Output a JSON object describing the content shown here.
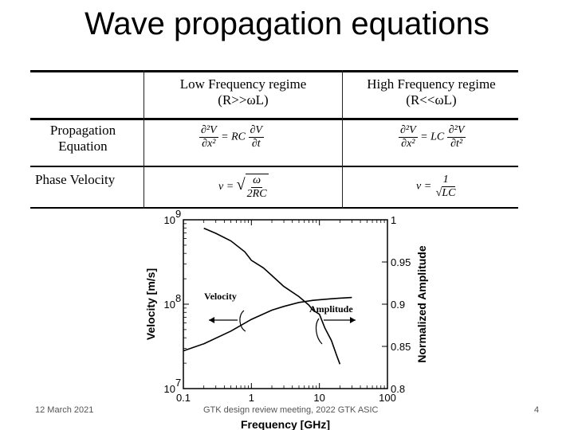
{
  "slide": {
    "title": "Wave propagation equations",
    "footer_date": "12 March 2021",
    "footer_center": "GTK design review meeting, 2022 GTK ASIC",
    "page_number": "4"
  },
  "table": {
    "header_low": [
      "Low Frequency regime",
      "(R>>ωL)"
    ],
    "header_high": [
      "High Frequency regime",
      "(R<<ωL)"
    ],
    "row1_label": [
      "Propagation",
      "Equation"
    ],
    "row2_label": "Phase Velocity",
    "low_eq": {
      "lhs_num": "∂²V",
      "lhs_den": "∂x²",
      "coef": "= RC",
      "rhs_num": "∂V",
      "rhs_den": "∂t"
    },
    "high_eq": {
      "lhs_num": "∂²V",
      "lhs_den": "∂x²",
      "coef": "= LC",
      "rhs_num": "∂²V",
      "rhs_den": "∂t²"
    },
    "low_vel": {
      "lhs": "v =",
      "num": "ω",
      "den": "2RC"
    },
    "high_vel": {
      "lhs": "v =",
      "num": "1",
      "den": "LC"
    }
  },
  "chart_data": {
    "type": "line",
    "x_scale": "log",
    "xlabel": "Frequency [GHz]",
    "ylabel": "Velocity [m/s]",
    "y2label": "Normalized Amplitude",
    "xlim": [
      0.1,
      100
    ],
    "ylim": [
      10000000,
      1000000000
    ],
    "y2lim": [
      0.8,
      1.0
    ],
    "x_ticks": [
      "0.1",
      "1",
      "10",
      "100"
    ],
    "y_ticks": [
      "10",
      "10",
      "10"
    ],
    "y_tick_exponents": [
      "7",
      "8",
      "9"
    ],
    "y2_ticks": [
      "0.8",
      "0.85",
      "0.9",
      "0.95",
      "1"
    ],
    "annotations": [
      "Velocity",
      "Amplitude"
    ],
    "series": [
      {
        "name": "Velocity",
        "x": [
          0.1,
          0.2,
          0.5,
          1,
          2,
          3,
          5,
          8,
          10,
          15,
          20,
          30
        ],
        "y": [
          28000000,
          34000000,
          48000000,
          66000000,
          85000000,
          94000000,
          105000000,
          111000000,
          113000000,
          116000000,
          118000000,
          120000000
        ]
      },
      {
        "name": "Amplitude",
        "x": [
          0.2,
          0.3,
          0.5,
          0.8,
          1,
          1.5,
          2,
          3,
          5,
          7,
          8,
          10,
          12,
          15,
          18,
          20
        ],
        "y": [
          0.99,
          0.984,
          0.975,
          0.962,
          0.952,
          0.943,
          0.934,
          0.921,
          0.909,
          0.899,
          0.893,
          0.888,
          0.872,
          0.857,
          0.839,
          0.829
        ]
      }
    ]
  }
}
